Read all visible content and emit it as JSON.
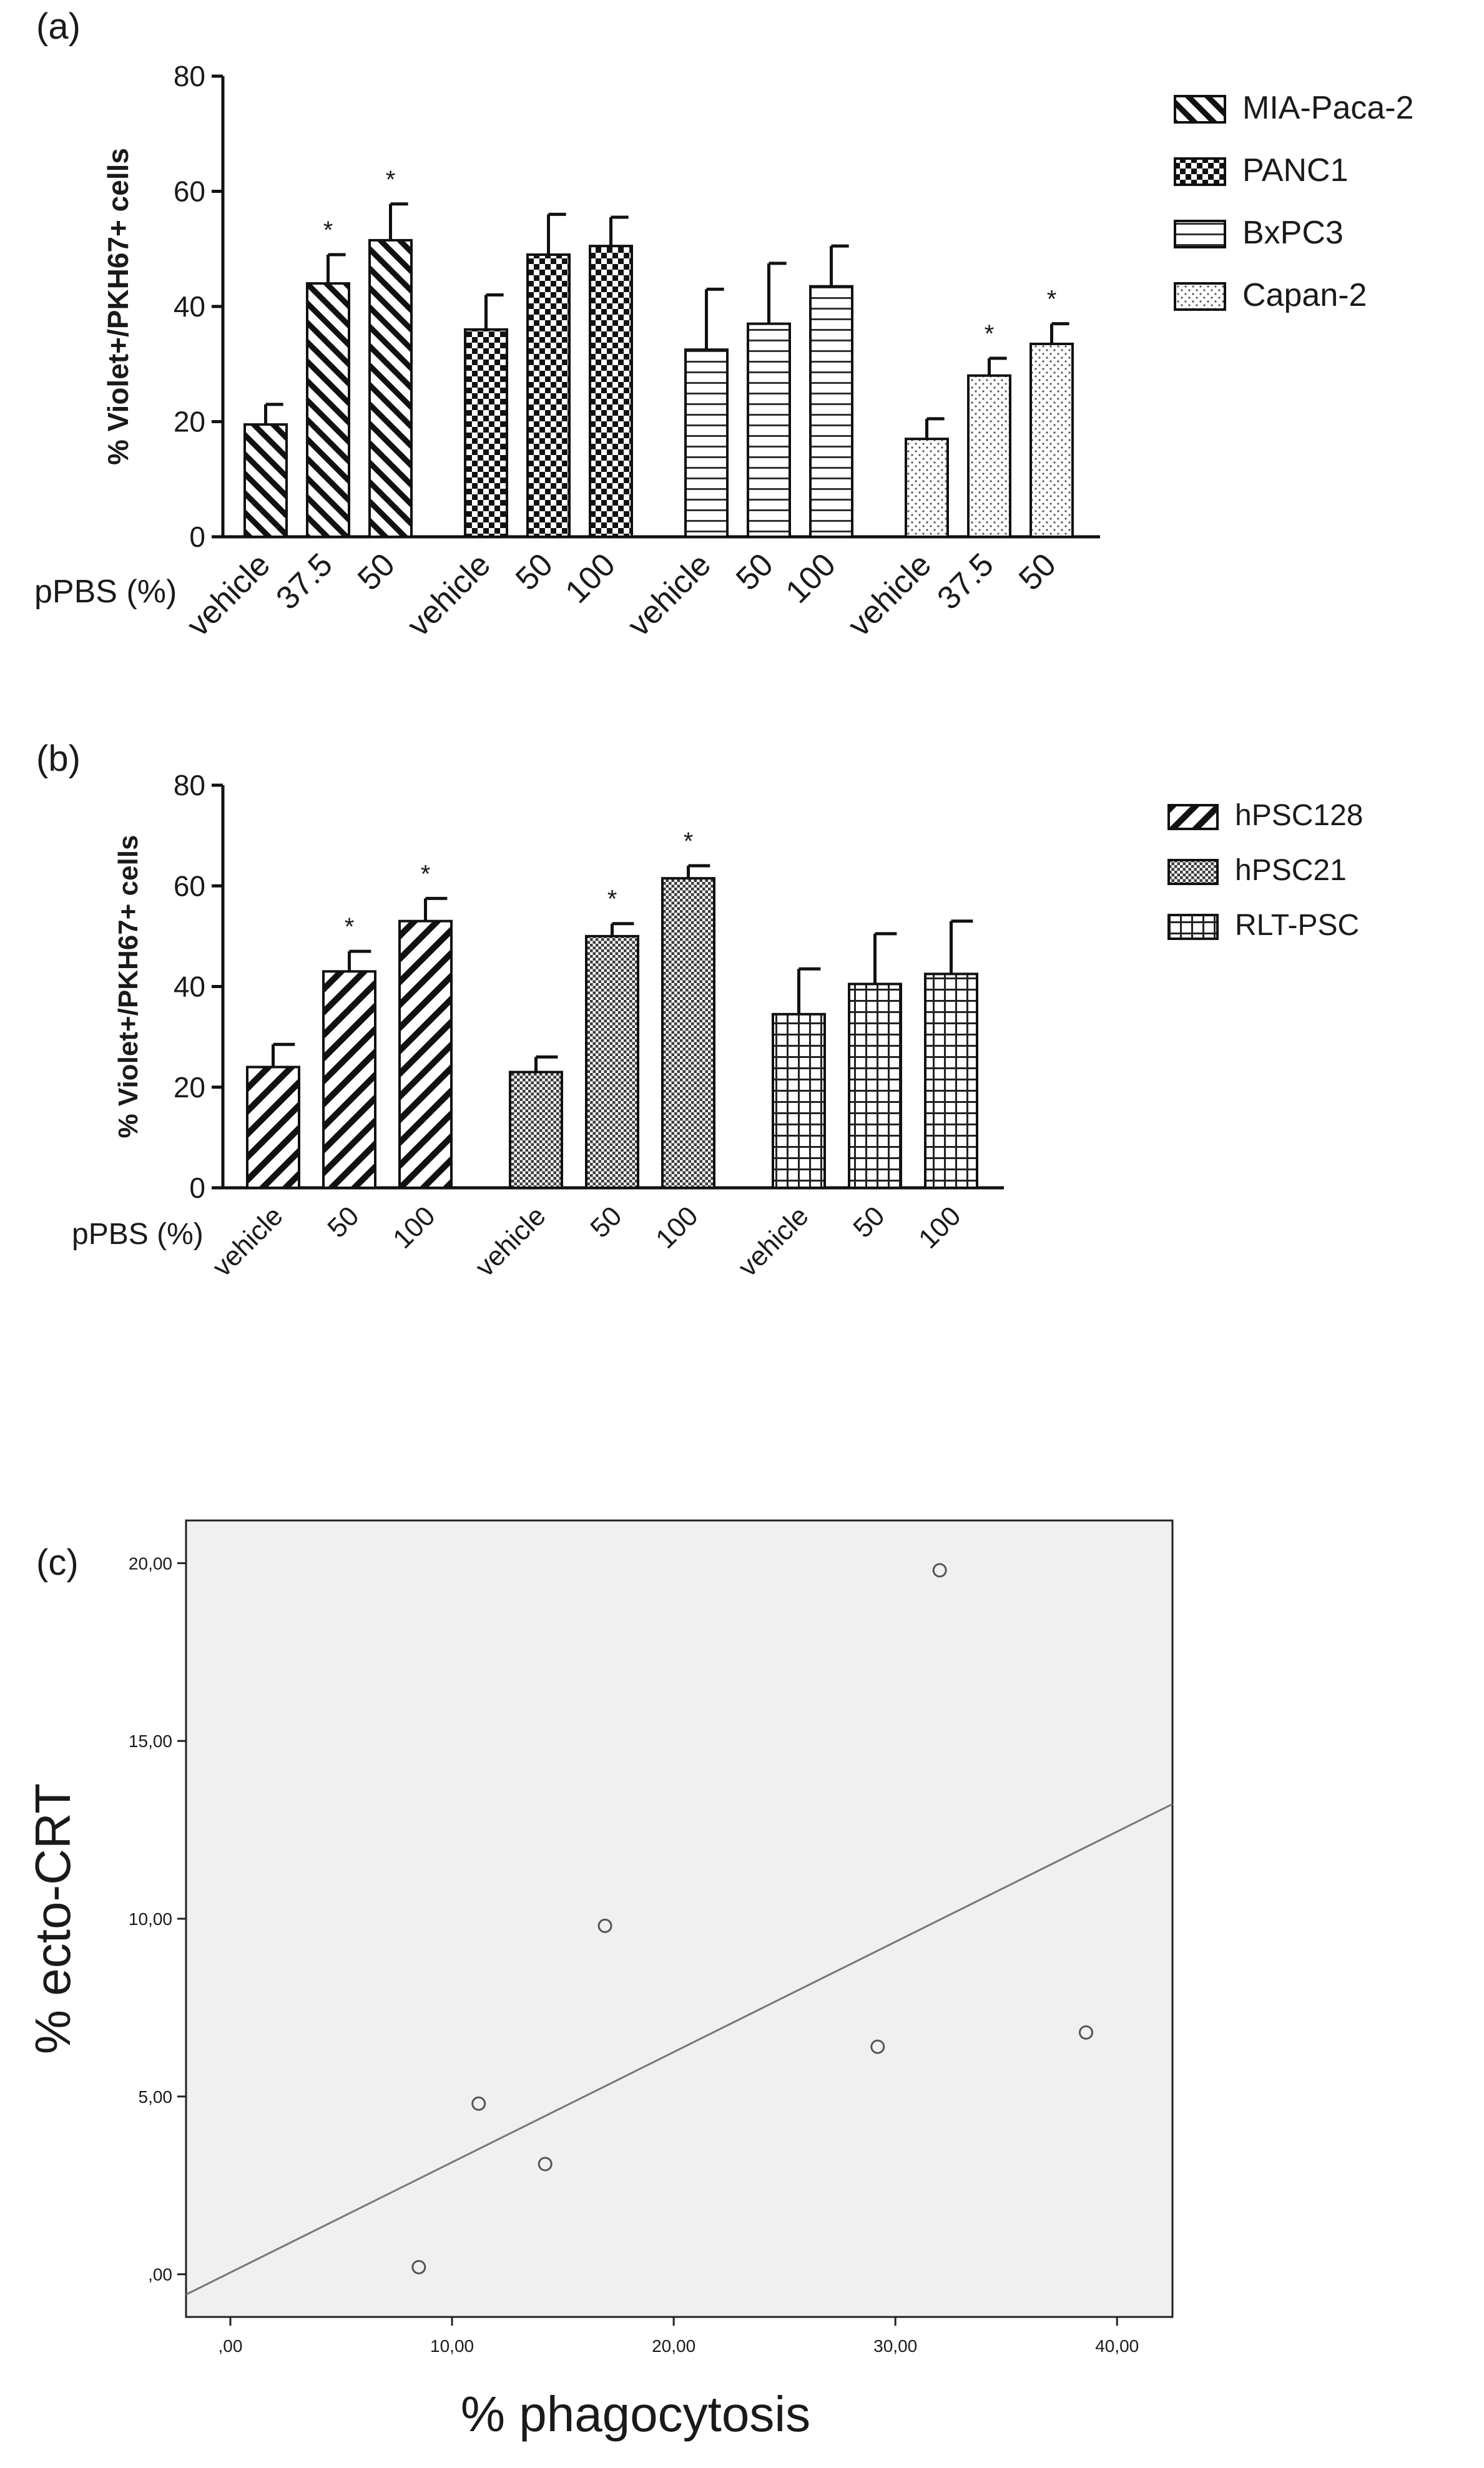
{
  "chart_data": [
    {
      "panel": "(a)",
      "type": "bar",
      "ylabel": "% Violet+/PKH67+ cells",
      "ylim": [
        0,
        80
      ],
      "yticks": [
        "0",
        "20",
        "40",
        "60",
        "80"
      ],
      "xlabel_prefix": "pPBS (%)",
      "groups": [
        {
          "name": "MIA-Paca-2",
          "pattern": "diag-right",
          "categories": [
            "vehicle",
            "37.5",
            "50"
          ],
          "values": [
            19.5,
            44,
            51.5
          ],
          "errors": [
            3.5,
            5,
            6.3
          ],
          "significant": [
            "",
            "*",
            "*"
          ]
        },
        {
          "name": "PANC1",
          "pattern": "checker",
          "categories": [
            "vehicle",
            "50",
            "100"
          ],
          "values": [
            36,
            49,
            50.5
          ],
          "errors": [
            6,
            7,
            5
          ],
          "significant": [
            "",
            "",
            ""
          ]
        },
        {
          "name": "BxPC3",
          "pattern": "horizontal",
          "categories": [
            "vehicle",
            "50",
            "100"
          ],
          "values": [
            32.5,
            37,
            43.5
          ],
          "errors": [
            10.5,
            10.5,
            7
          ],
          "significant": [
            "",
            "",
            ""
          ]
        },
        {
          "name": "Capan-2",
          "pattern": "dots",
          "categories": [
            "vehicle",
            "37.5",
            "50"
          ],
          "values": [
            17,
            28,
            33.5
          ],
          "errors": [
            3.5,
            3,
            3.5
          ],
          "significant": [
            "",
            "*",
            "*"
          ]
        }
      ]
    },
    {
      "panel": "(b)",
      "type": "bar",
      "ylabel": "% Violet+/PKH67+ cells",
      "ylim": [
        0,
        80
      ],
      "yticks": [
        "0",
        "20",
        "40",
        "60",
        "80"
      ],
      "xlabel_prefix": "pPBS (%)",
      "groups": [
        {
          "name": "hPSC128",
          "pattern": "diag-left",
          "categories": [
            "vehicle",
            "50",
            "100"
          ],
          "values": [
            24,
            43,
            53
          ],
          "errors": [
            4.5,
            4,
            4.5
          ],
          "significant": [
            "",
            "*",
            "*"
          ]
        },
        {
          "name": "hPSC21",
          "pattern": "crosshatch",
          "categories": [
            "vehicle",
            "50",
            "100"
          ],
          "values": [
            23,
            50,
            61.5
          ],
          "errors": [
            3,
            2.5,
            2.5
          ],
          "significant": [
            "",
            "*",
            "*"
          ]
        },
        {
          "name": "RLT-PSC",
          "pattern": "grid",
          "categories": [
            "vehicle",
            "50",
            "100"
          ],
          "values": [
            34.5,
            40.5,
            42.5
          ],
          "errors": [
            9,
            10,
            10.5
          ],
          "significant": [
            "",
            "",
            ""
          ]
        }
      ]
    },
    {
      "panel": "(c)",
      "type": "scatter",
      "xlabel": "% phagocytosis",
      "ylabel": "% ecto-CRT",
      "xlim": [
        -2,
        42.5
      ],
      "ylim": [
        -1.2,
        21.2
      ],
      "xticks": [
        ",00",
        "10,00",
        "20,00",
        "30,00",
        "40,00"
      ],
      "yticks": [
        ",00",
        "5,00",
        "10,00",
        "15,00",
        "20,00"
      ],
      "points": [
        {
          "x": 8.5,
          "y": 0.2
        },
        {
          "x": 11.2,
          "y": 4.8
        },
        {
          "x": 14.2,
          "y": 3.1
        },
        {
          "x": 16.9,
          "y": 9.8
        },
        {
          "x": 29.2,
          "y": 6.4
        },
        {
          "x": 32.0,
          "y": 19.8
        },
        {
          "x": 38.6,
          "y": 6.8
        }
      ],
      "fit_line": {
        "slope": 0.31,
        "intercept": 0.05
      }
    }
  ]
}
